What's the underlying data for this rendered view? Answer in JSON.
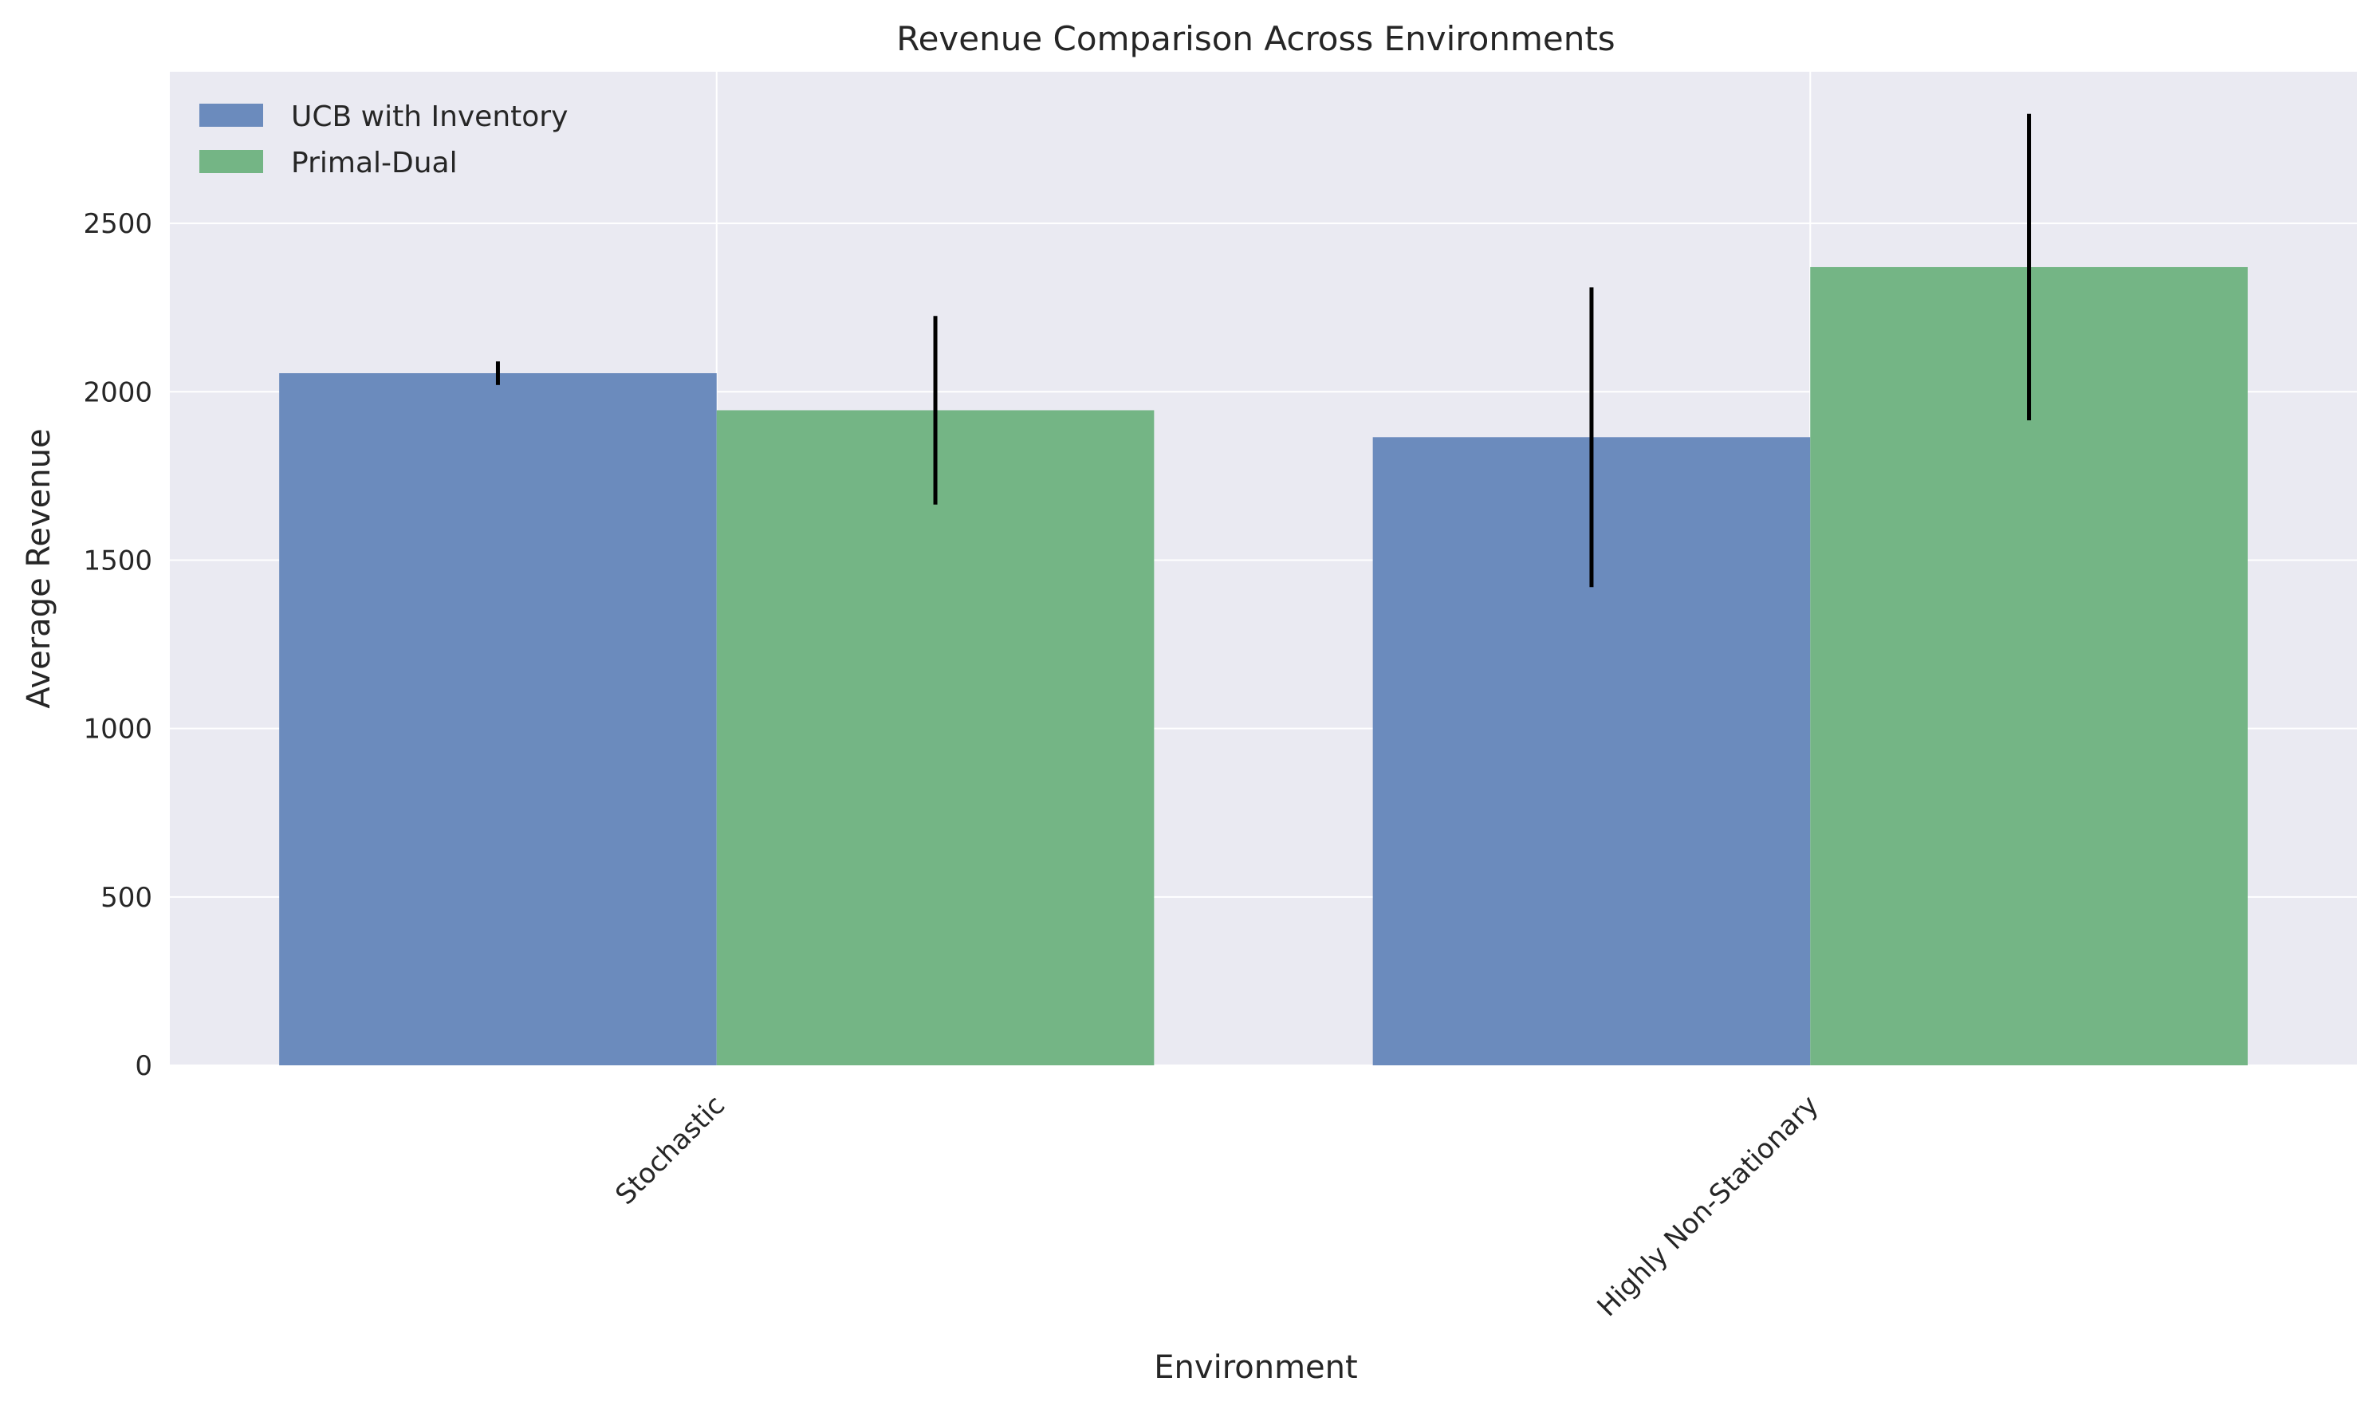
{
  "chart_data": {
    "type": "bar",
    "title": "Revenue Comparison Across Environments",
    "xlabel": "Environment",
    "ylabel": "Average Revenue",
    "categories": [
      "Stochastic",
      "Highly Non-Stationary"
    ],
    "series": [
      {
        "name": "UCB with Inventory",
        "values": [
          2055,
          1865
        ],
        "errors": [
          35,
          445
        ],
        "color": "#6b8bbd"
      },
      {
        "name": "Primal-Dual",
        "values": [
          1945,
          2370
        ],
        "errors": [
          280,
          455
        ],
        "color": "#74b585"
      }
    ],
    "ylim": [
      0,
      2950
    ],
    "yticks": [
      0,
      500,
      1000,
      1500,
      2000,
      2500
    ],
    "ytick_labels": [
      "0",
      "500",
      "1000",
      "1500",
      "2000",
      "2500"
    ],
    "grid": true,
    "legend_position": "top-left",
    "background_color": "#eaeaf2",
    "error_bar_color": "#000000"
  }
}
